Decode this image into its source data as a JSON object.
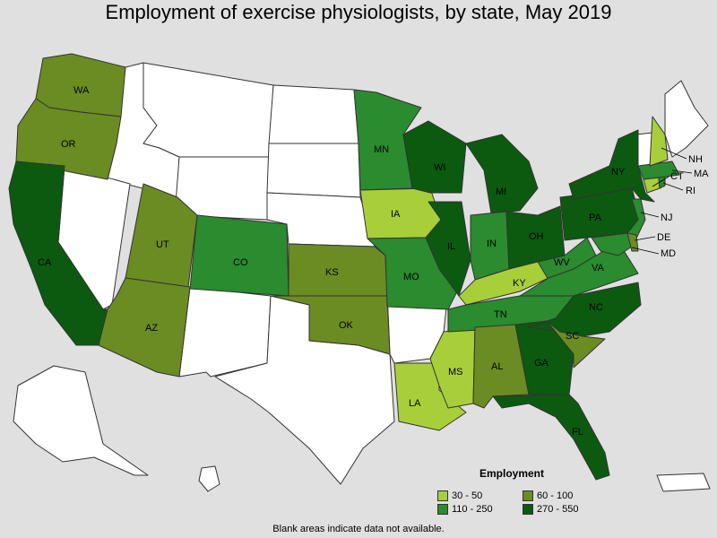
{
  "title": "Employment of exercise physiologists, by state, May 2019",
  "legend": {
    "title": "Employment",
    "items": [
      {
        "label": "30 - 50",
        "color": "#a8cf3a"
      },
      {
        "label": "110 - 250",
        "color": "#2a8b2f"
      },
      {
        "label": "60 - 100",
        "color": "#6b8c23"
      },
      {
        "label": "270 - 550",
        "color": "#0b5a10"
      }
    ]
  },
  "note": "Blank areas indicate data not available.",
  "colors": {
    "blank": "#ffffff",
    "border": "#333333",
    "background": "#e0e0e0"
  },
  "states": [
    {
      "abbr": "WA",
      "tier": "60 - 100"
    },
    {
      "abbr": "OR",
      "tier": "60 - 100"
    },
    {
      "abbr": "CA",
      "tier": "270 - 550"
    },
    {
      "abbr": "UT",
      "tier": "60 - 100"
    },
    {
      "abbr": "AZ",
      "tier": "60 - 100"
    },
    {
      "abbr": "CO",
      "tier": "110 - 250"
    },
    {
      "abbr": "KS",
      "tier": "60 - 100"
    },
    {
      "abbr": "OK",
      "tier": "60 - 100"
    },
    {
      "abbr": "MN",
      "tier": "110 - 250"
    },
    {
      "abbr": "IA",
      "tier": "30 - 50"
    },
    {
      "abbr": "MO",
      "tier": "110 - 250"
    },
    {
      "abbr": "LA",
      "tier": "30 - 50"
    },
    {
      "abbr": "WI",
      "tier": "270 - 550"
    },
    {
      "abbr": "IL",
      "tier": "270 - 550"
    },
    {
      "abbr": "MS",
      "tier": "30 - 50"
    },
    {
      "abbr": "MI",
      "tier": "270 - 550"
    },
    {
      "abbr": "IN",
      "tier": "110 - 250"
    },
    {
      "abbr": "KY",
      "tier": "30 - 50"
    },
    {
      "abbr": "TN",
      "tier": "110 - 250"
    },
    {
      "abbr": "AL",
      "tier": "60 - 100"
    },
    {
      "abbr": "OH",
      "tier": "270 - 550"
    },
    {
      "abbr": "GA",
      "tier": "270 - 550"
    },
    {
      "abbr": "FL",
      "tier": "270 - 550"
    },
    {
      "abbr": "WV",
      "tier": "110 - 250"
    },
    {
      "abbr": "VA",
      "tier": "110 - 250"
    },
    {
      "abbr": "NC",
      "tier": "270 - 550"
    },
    {
      "abbr": "SC",
      "tier": "60 - 100"
    },
    {
      "abbr": "PA",
      "tier": "270 - 550"
    },
    {
      "abbr": "NY",
      "tier": "270 - 550"
    },
    {
      "abbr": "NJ",
      "tier": "110 - 250"
    },
    {
      "abbr": "DE",
      "tier": "60 - 100"
    },
    {
      "abbr": "MD",
      "tier": "110 - 250"
    },
    {
      "abbr": "CT",
      "tier": "30 - 50"
    },
    {
      "abbr": "RI",
      "tier": "110 - 250"
    },
    {
      "abbr": "MA",
      "tier": "110 - 250"
    },
    {
      "abbr": "NH",
      "tier": "30 - 50"
    }
  ]
}
